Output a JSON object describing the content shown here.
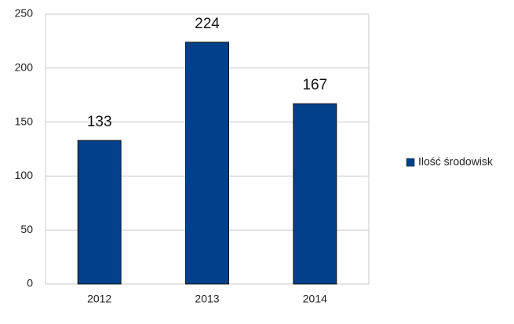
{
  "chart_data": {
    "type": "bar",
    "categories": [
      "2012",
      "2013",
      "2014"
    ],
    "series": [
      {
        "name": "Ilość środowisk",
        "color": "#02418a",
        "values": [
          133,
          224,
          167
        ]
      }
    ],
    "ylim": [
      0,
      250
    ],
    "yticks": [
      0,
      50,
      100,
      150,
      200,
      250
    ],
    "grid": true,
    "legend": "right"
  }
}
